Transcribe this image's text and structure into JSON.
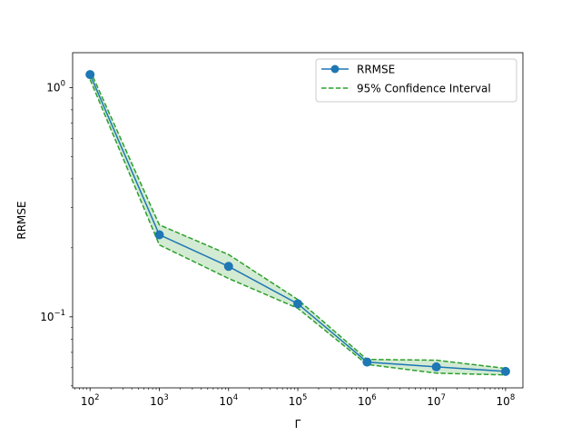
{
  "chart_data": {
    "type": "line",
    "x_scale": "log",
    "y_scale": "log",
    "xlabel": "Γ",
    "ylabel": "RRMSE",
    "xlim": [
      56,
      178000000
    ],
    "ylim": [
      0.049,
      1.42
    ],
    "grid": false,
    "legend_position": "top-right",
    "x_ticks": [
      {
        "value": 100,
        "base": "10",
        "exp": "2"
      },
      {
        "value": 1000,
        "base": "10",
        "exp": "3"
      },
      {
        "value": 10000,
        "base": "10",
        "exp": "4"
      },
      {
        "value": 100000,
        "base": "10",
        "exp": "5"
      },
      {
        "value": 1000000,
        "base": "10",
        "exp": "6"
      },
      {
        "value": 10000000,
        "base": "10",
        "exp": "7"
      },
      {
        "value": 100000000,
        "base": "10",
        "exp": "8"
      }
    ],
    "y_ticks": [
      {
        "value": 0.1,
        "base": "10",
        "exp": "−1"
      },
      {
        "value": 1,
        "base": "10",
        "exp": "0"
      }
    ],
    "x": [
      100,
      1000,
      10000,
      100000,
      1000000,
      10000000,
      100000000
    ],
    "series": [
      {
        "name": "RRMSE",
        "style": "solid-line-circle-markers",
        "color": "#1f77b4",
        "values": [
          1.14,
          0.228,
          0.166,
          0.114,
          0.0635,
          0.0605,
          0.0578
        ]
      },
      {
        "name": "95% Confidence Interval",
        "style": "dashed-line-shaded-band",
        "color": "#2ca02c",
        "fill": "#d3ebd3",
        "lower": [
          1.085,
          0.206,
          0.147,
          0.109,
          0.062,
          0.0568,
          0.0558
        ],
        "upper": [
          1.19,
          0.252,
          0.187,
          0.119,
          0.0652,
          0.0647,
          0.0596
        ]
      }
    ]
  }
}
